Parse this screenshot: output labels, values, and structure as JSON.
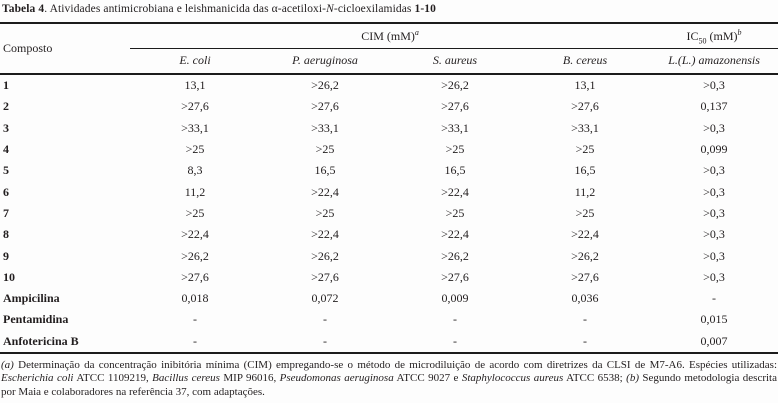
{
  "title": {
    "prefix": "Tabela 4",
    "text_a": ". Atividades antimicrobiana e leishmanicida das α-acetiloxi-",
    "italic_n": "N",
    "text_b": "-cicloexilamidas ",
    "compounds_range": "1-10"
  },
  "table": {
    "corner_header": "Composto",
    "group_cim": {
      "label": "CIM (mM)",
      "sup": "a"
    },
    "group_ic50": {
      "pre": "IC",
      "sub": "50",
      "mid": " (mM)",
      "sup": "b"
    },
    "column_headers": [
      "E. coli",
      "P. aeruginosa",
      "S. aureus",
      "B. cereus",
      "L.(L.) amazonensis"
    ],
    "rows": [
      {
        "compound": "1",
        "values": [
          "13,1",
          ">26,2",
          ">26,2",
          "13,1",
          ">0,3"
        ]
      },
      {
        "compound": "2",
        "values": [
          ">27,6",
          ">27,6",
          ">27,6",
          ">27,6",
          "0,137"
        ]
      },
      {
        "compound": "3",
        "values": [
          ">33,1",
          ">33,1",
          ">33,1",
          ">33,1",
          ">0,3"
        ]
      },
      {
        "compound": "4",
        "values": [
          ">25",
          ">25",
          ">25",
          ">25",
          "0,099"
        ]
      },
      {
        "compound": "5",
        "values": [
          "8,3",
          "16,5",
          "16,5",
          "16,5",
          ">0,3"
        ]
      },
      {
        "compound": "6",
        "values": [
          "11,2",
          ">22,4",
          ">22,4",
          "11,2",
          ">0,3"
        ]
      },
      {
        "compound": "7",
        "values": [
          ">25",
          ">25",
          ">25",
          ">25",
          ">0,3"
        ]
      },
      {
        "compound": "8",
        "values": [
          ">22,4",
          ">22,4",
          ">22,4",
          ">22,4",
          ">0,3"
        ]
      },
      {
        "compound": "9",
        "values": [
          ">26,2",
          ">26,2",
          ">26,2",
          ">26,2",
          ">0,3"
        ]
      },
      {
        "compound": "10",
        "values": [
          ">27,6",
          ">27,6",
          ">27,6",
          ">27,6",
          ">0,3"
        ]
      },
      {
        "compound": "Ampicilina",
        "values": [
          "0,018",
          "0,072",
          "0,009",
          "0,036",
          "-"
        ]
      },
      {
        "compound": "Pentamidina",
        "values": [
          "-",
          "-",
          "-",
          "-",
          "0,015"
        ]
      },
      {
        "compound": "Anfotericina B",
        "values": [
          "-",
          "-",
          "-",
          "-",
          "0,007"
        ]
      }
    ]
  },
  "footnotes": {
    "a_marker": "(a)",
    "a_text_1": " Determinação da concentração inibitória mínima (CIM) empregando-se o método de microdiluição de acordo com diretrizes da CLSI de M7-A6. Espécies utilizadas: ",
    "species_1": "Escherichia coli",
    "a_text_2": " ATCC 1109219, ",
    "species_2": "Bacillus cereus",
    "a_text_3": " MIP 96016, ",
    "species_3": "Pseudomonas aeruginosa",
    "a_text_4": " ATCC 9027 e ",
    "species_4": "Staphylococcus aureus",
    "a_text_5": " ATCC 6538; ",
    "b_marker": "(b)",
    "b_text": " Segundo metodologia descrita por Maia e colaboradores na referência 37, com adaptações."
  }
}
